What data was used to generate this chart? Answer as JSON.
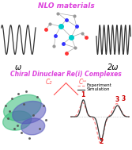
{
  "title_nlo": "NLO materials",
  "title_chiral": "Chiral Dinuclear Re(i) Complexes",
  "label_omega": "ω",
  "label_2omega": "2ω",
  "label_c2": "C₂",
  "label_cb": "Cᵚ",
  "legend_exp": "Experiment",
  "legend_sim": "Simulation",
  "peak_labels": [
    "1",
    "2",
    "3"
  ],
  "color_nlo": "#dd44dd",
  "color_chiral": "#dd44dd",
  "color_c_labels": "#ff5555",
  "color_exp": "#ff8888",
  "color_sim": "#333333",
  "bg_color": "#ffffff",
  "wave_color": "#333333",
  "green_blob": "#33bb77",
  "blue_blob": "#5555bb",
  "atom_cyan": "#00cccc",
  "atom_red": "#ff3333",
  "atom_blue": "#3333ff",
  "atom_grey": "#999999",
  "atom_dark": "#444444"
}
